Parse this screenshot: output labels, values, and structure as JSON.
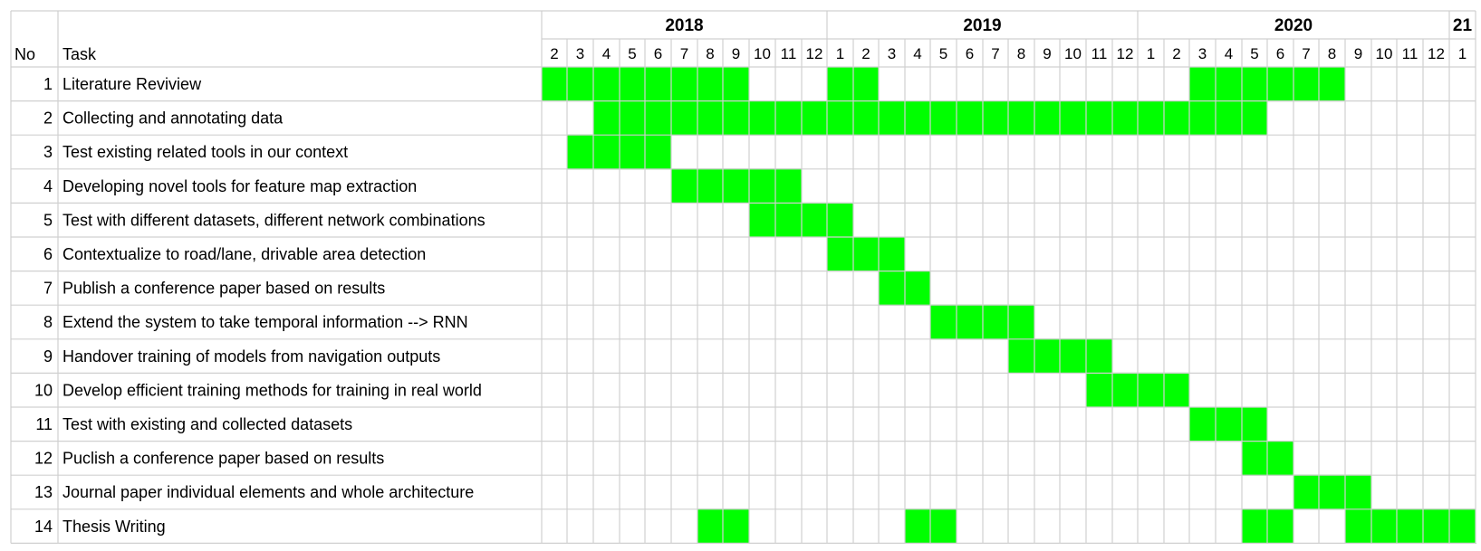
{
  "headers": {
    "no": "No",
    "task": "Task"
  },
  "chart_data": {
    "type": "gantt",
    "colors": {
      "filled": "#00ff00",
      "filled_border": "#00cc00",
      "grid": "#d0d0d0"
    },
    "years": [
      {
        "label": "2018",
        "span": 11
      },
      {
        "label": "2019",
        "span": 12
      },
      {
        "label": "2020",
        "span": 12
      },
      {
        "label": "21",
        "span": 1
      }
    ],
    "months": [
      "2",
      "3",
      "4",
      "5",
      "6",
      "7",
      "8",
      "9",
      "10",
      "11",
      "12",
      "1",
      "2",
      "3",
      "4",
      "5",
      "6",
      "7",
      "8",
      "9",
      "10",
      "11",
      "12",
      "1",
      "2",
      "3",
      "4",
      "5",
      "6",
      "7",
      "8",
      "9",
      "10",
      "11",
      "12",
      "1"
    ],
    "tasks": [
      {
        "no": "1",
        "name": "Literature Reviview",
        "active": [
          0,
          1,
          2,
          3,
          4,
          5,
          6,
          7,
          11,
          12,
          25,
          26,
          27,
          28,
          29,
          30
        ]
      },
      {
        "no": "2",
        "name": "Collecting and annotating data",
        "active": [
          2,
          3,
          4,
          5,
          6,
          7,
          8,
          9,
          10,
          11,
          12,
          13,
          14,
          15,
          16,
          17,
          18,
          19,
          20,
          21,
          22,
          23,
          24,
          25,
          26,
          27
        ]
      },
      {
        "no": "3",
        "name": "Test existing related tools in our context",
        "active": [
          1,
          2,
          3,
          4
        ]
      },
      {
        "no": "4",
        "name": "Developing novel tools for feature map extraction",
        "active": [
          5,
          6,
          7,
          8,
          9
        ]
      },
      {
        "no": "5",
        "name": "Test with different datasets, different network combinations",
        "active": [
          8,
          9,
          10,
          11
        ]
      },
      {
        "no": "6",
        "name": "Contextualize to road/lane, drivable area detection",
        "active": [
          11,
          12,
          13
        ]
      },
      {
        "no": "7",
        "name": "Publish a conference paper based on results",
        "active": [
          13,
          14
        ]
      },
      {
        "no": "8",
        "name": "Extend the system to take temporal information --> RNN",
        "active": [
          15,
          16,
          17,
          18
        ]
      },
      {
        "no": "9",
        "name": "Handover training of models from navigation outputs",
        "active": [
          18,
          19,
          20,
          21
        ]
      },
      {
        "no": "10",
        "name": "Develop efficient training methods for training in real world",
        "active": [
          21,
          22,
          23,
          24
        ]
      },
      {
        "no": "11",
        "name": "Test with existing and collected datasets",
        "active": [
          25,
          26,
          27
        ]
      },
      {
        "no": "12",
        "name": "Puclish a conference paper based on results",
        "active": [
          27,
          28
        ]
      },
      {
        "no": "13",
        "name": "Journal paper individual elements and whole architecture",
        "active": [
          29,
          30,
          31
        ]
      },
      {
        "no": "14",
        "name": "Thesis Writing",
        "active": [
          6,
          7,
          14,
          15,
          27,
          28,
          31,
          32,
          33,
          34,
          35
        ]
      }
    ]
  }
}
